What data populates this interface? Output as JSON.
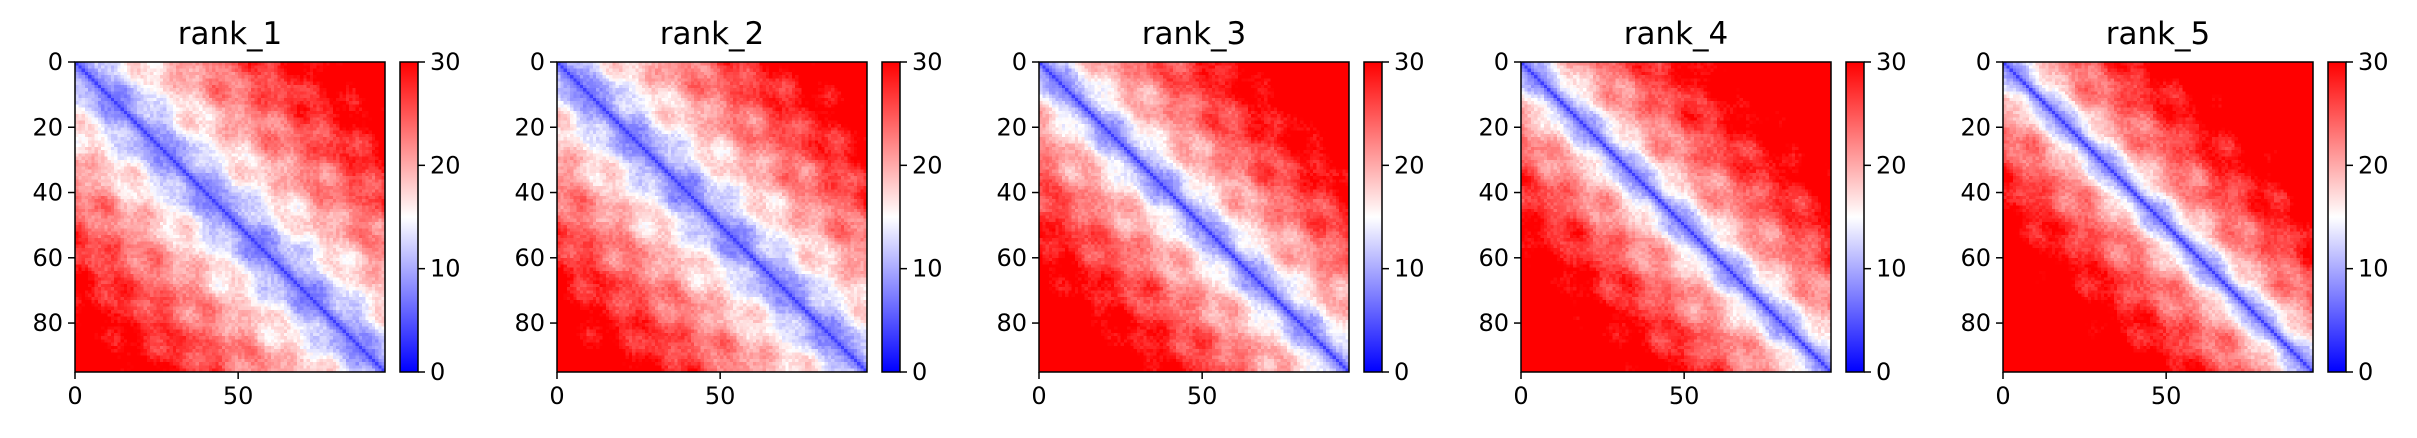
{
  "chart_data": {
    "type": "heatmap",
    "colormap": {
      "name": "bwr",
      "stops": [
        "#0000ff",
        "#ffffff",
        "#ff0000"
      ]
    },
    "panels": [
      {
        "title": "rank_1",
        "bias": 0.0,
        "xticks": [
          "0",
          "50"
        ],
        "yticks": [
          "0",
          "20",
          "40",
          "60",
          "80"
        ],
        "xlim": [
          0,
          95
        ],
        "ylim": [
          95,
          0
        ],
        "colorbar": {
          "range": [
            0,
            30
          ],
          "ticks": [
            "0",
            "10",
            "20",
            "30"
          ]
        }
      },
      {
        "title": "rank_2",
        "bias": 0.01,
        "xticks": [
          "0",
          "50"
        ],
        "yticks": [
          "0",
          "20",
          "40",
          "60",
          "80"
        ],
        "xlim": [
          0,
          95
        ],
        "ylim": [
          95,
          0
        ],
        "colorbar": {
          "range": [
            0,
            30
          ],
          "ticks": [
            "0",
            "10",
            "20",
            "30"
          ]
        }
      },
      {
        "title": "rank_3",
        "bias": 0.1,
        "xticks": [
          "0",
          "50"
        ],
        "yticks": [
          "0",
          "20",
          "40",
          "60",
          "80"
        ],
        "xlim": [
          0,
          95
        ],
        "ylim": [
          95,
          0
        ],
        "colorbar": {
          "range": [
            0,
            30
          ],
          "ticks": [
            "0",
            "10",
            "20",
            "30"
          ]
        }
      },
      {
        "title": "rank_4",
        "bias": 0.15,
        "xticks": [
          "0",
          "50"
        ],
        "yticks": [
          "0",
          "20",
          "40",
          "60",
          "80"
        ],
        "xlim": [
          0,
          95
        ],
        "ylim": [
          95,
          0
        ],
        "colorbar": {
          "range": [
            0,
            30
          ],
          "ticks": [
            "0",
            "10",
            "20",
            "30"
          ]
        }
      },
      {
        "title": "rank_5",
        "bias": 0.2,
        "xticks": [
          "0",
          "50"
        ],
        "yticks": [
          "0",
          "20",
          "40",
          "60",
          "80"
        ],
        "xlim": [
          0,
          95
        ],
        "ylim": [
          95,
          0
        ],
        "colorbar": {
          "range": [
            0,
            30
          ],
          "ticks": [
            "0",
            "10",
            "20",
            "30"
          ]
        }
      }
    ]
  }
}
